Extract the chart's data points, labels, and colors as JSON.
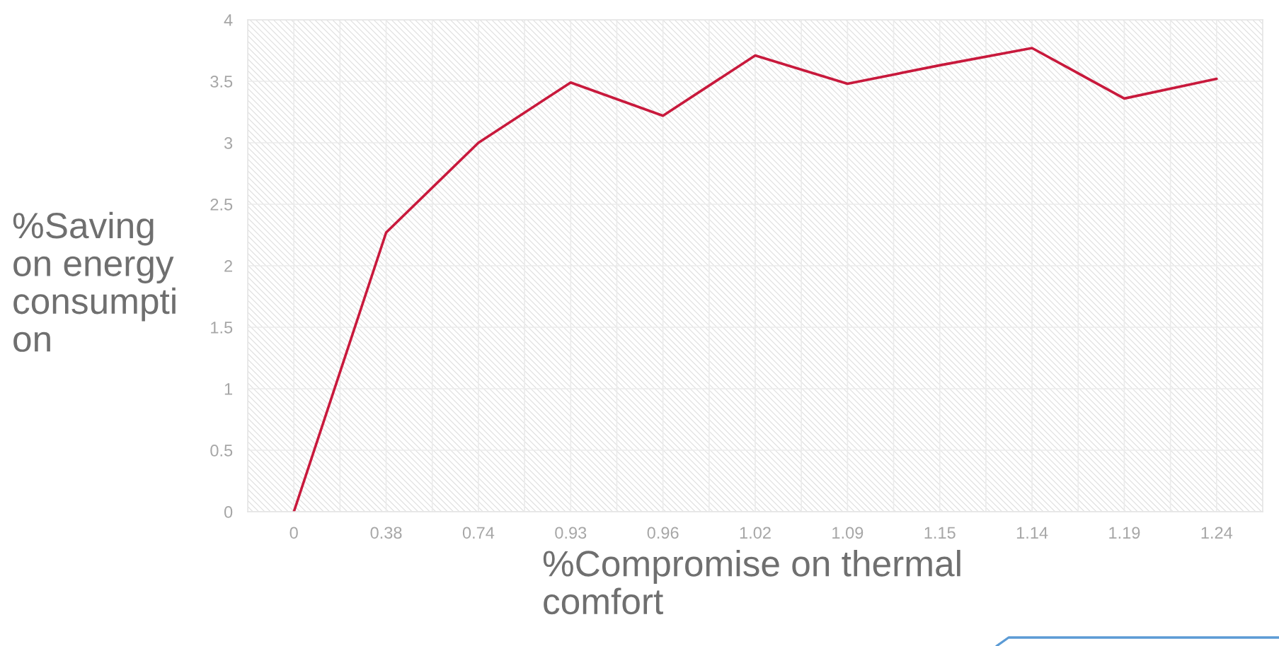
{
  "chart_data": {
    "type": "line",
    "xlabel": "%Compromise on thermal\ncomfort",
    "ylabel": "%Saving\non energy\nconsumpti\non",
    "categories": [
      "0",
      "0.38",
      "0.74",
      "0.93",
      "0.96",
      "1.02",
      "1.09",
      "1.15",
      "1.14",
      "1.19",
      "1.24"
    ],
    "series": [
      {
        "color": "#c8193c",
        "values": [
          0,
          2.27,
          3,
          3.49,
          3.22,
          3.71,
          3.48,
          3.63,
          3.77,
          3.36,
          3.52
        ]
      }
    ],
    "ylim": [
      0,
      4
    ],
    "yticks": [
      0,
      0.5,
      1,
      1.5,
      2,
      2.5,
      3,
      3.5,
      4
    ],
    "grid": true
  }
}
